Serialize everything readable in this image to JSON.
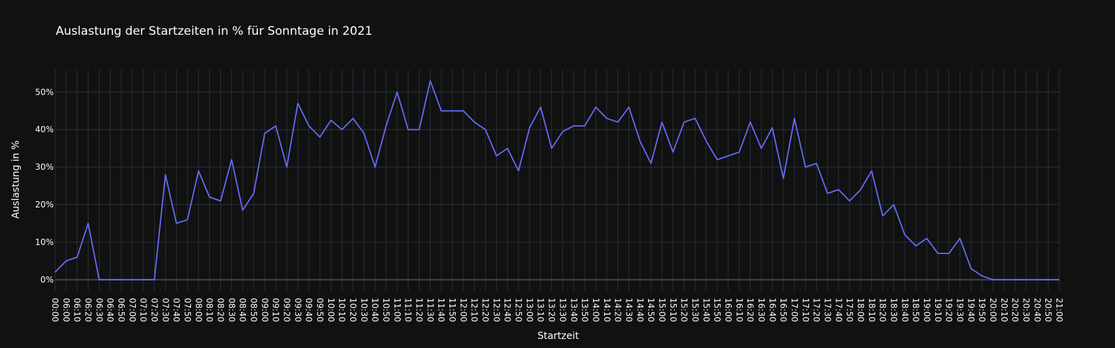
{
  "chart_data": {
    "type": "line",
    "title": "Auslastung der Startzeiten in % für Sonntage in 2021",
    "xlabel": "Startzeit",
    "ylabel": "Auslastung in %",
    "ylim": [
      -3,
      56
    ],
    "yticks": [
      0,
      10,
      20,
      30,
      40,
      50
    ],
    "ytick_suffix": "%",
    "grid": true,
    "legend": "none",
    "colors": {
      "background": "#111111",
      "line": "#636efa",
      "grid": "#283442",
      "text": "#ffffff"
    },
    "x": [
      "00:00",
      "06:00",
      "06:10",
      "06:20",
      "06:30",
      "06:40",
      "06:50",
      "07:00",
      "07:10",
      "07:20",
      "07:30",
      "07:40",
      "07:50",
      "08:00",
      "08:10",
      "08:20",
      "08:30",
      "08:40",
      "08:50",
      "09:00",
      "09:10",
      "09:20",
      "09:30",
      "09:40",
      "09:50",
      "10:00",
      "10:10",
      "10:20",
      "10:30",
      "10:40",
      "10:50",
      "11:00",
      "11:10",
      "11:20",
      "11:30",
      "11:40",
      "11:50",
      "12:00",
      "12:10",
      "12:20",
      "12:30",
      "12:40",
      "12:50",
      "13:00",
      "13:10",
      "13:20",
      "13:30",
      "13:40",
      "13:50",
      "14:00",
      "14:10",
      "14:20",
      "14:30",
      "14:40",
      "14:50",
      "15:00",
      "15:10",
      "15:20",
      "15:30",
      "15:40",
      "15:50",
      "16:00",
      "16:10",
      "16:20",
      "16:30",
      "16:40",
      "16:50",
      "17:00",
      "17:10",
      "17:20",
      "17:30",
      "17:40",
      "17:50",
      "18:00",
      "18:10",
      "18:20",
      "18:30",
      "18:40",
      "18:50",
      "19:00",
      "19:10",
      "19:20",
      "19:30",
      "19:40",
      "19:50",
      "20:00",
      "20:10",
      "20:20",
      "20:30",
      "20:40",
      "20:50",
      "21:00"
    ],
    "series": [
      {
        "values": [
          2,
          5,
          6,
          15,
          0,
          0,
          0,
          0,
          0,
          0,
          28,
          15,
          16,
          29,
          22,
          21,
          32,
          18.5,
          23,
          39,
          41,
          30,
          47,
          41,
          38,
          42.5,
          40,
          43,
          39,
          30,
          41,
          50,
          40,
          40,
          53,
          45,
          45,
          45,
          42,
          40,
          33,
          35,
          29,
          40.5,
          46,
          35,
          39.5,
          41,
          41,
          46,
          43,
          42,
          46,
          37,
          31,
          42,
          34,
          42,
          43,
          37,
          32,
          33,
          34,
          42,
          35,
          40.5,
          27,
          43,
          30,
          31,
          23,
          24,
          21,
          24,
          29,
          17,
          20,
          12,
          9,
          11,
          7,
          7,
          11,
          3,
          1,
          0,
          0,
          0,
          0,
          0,
          0,
          0
        ]
      }
    ]
  }
}
